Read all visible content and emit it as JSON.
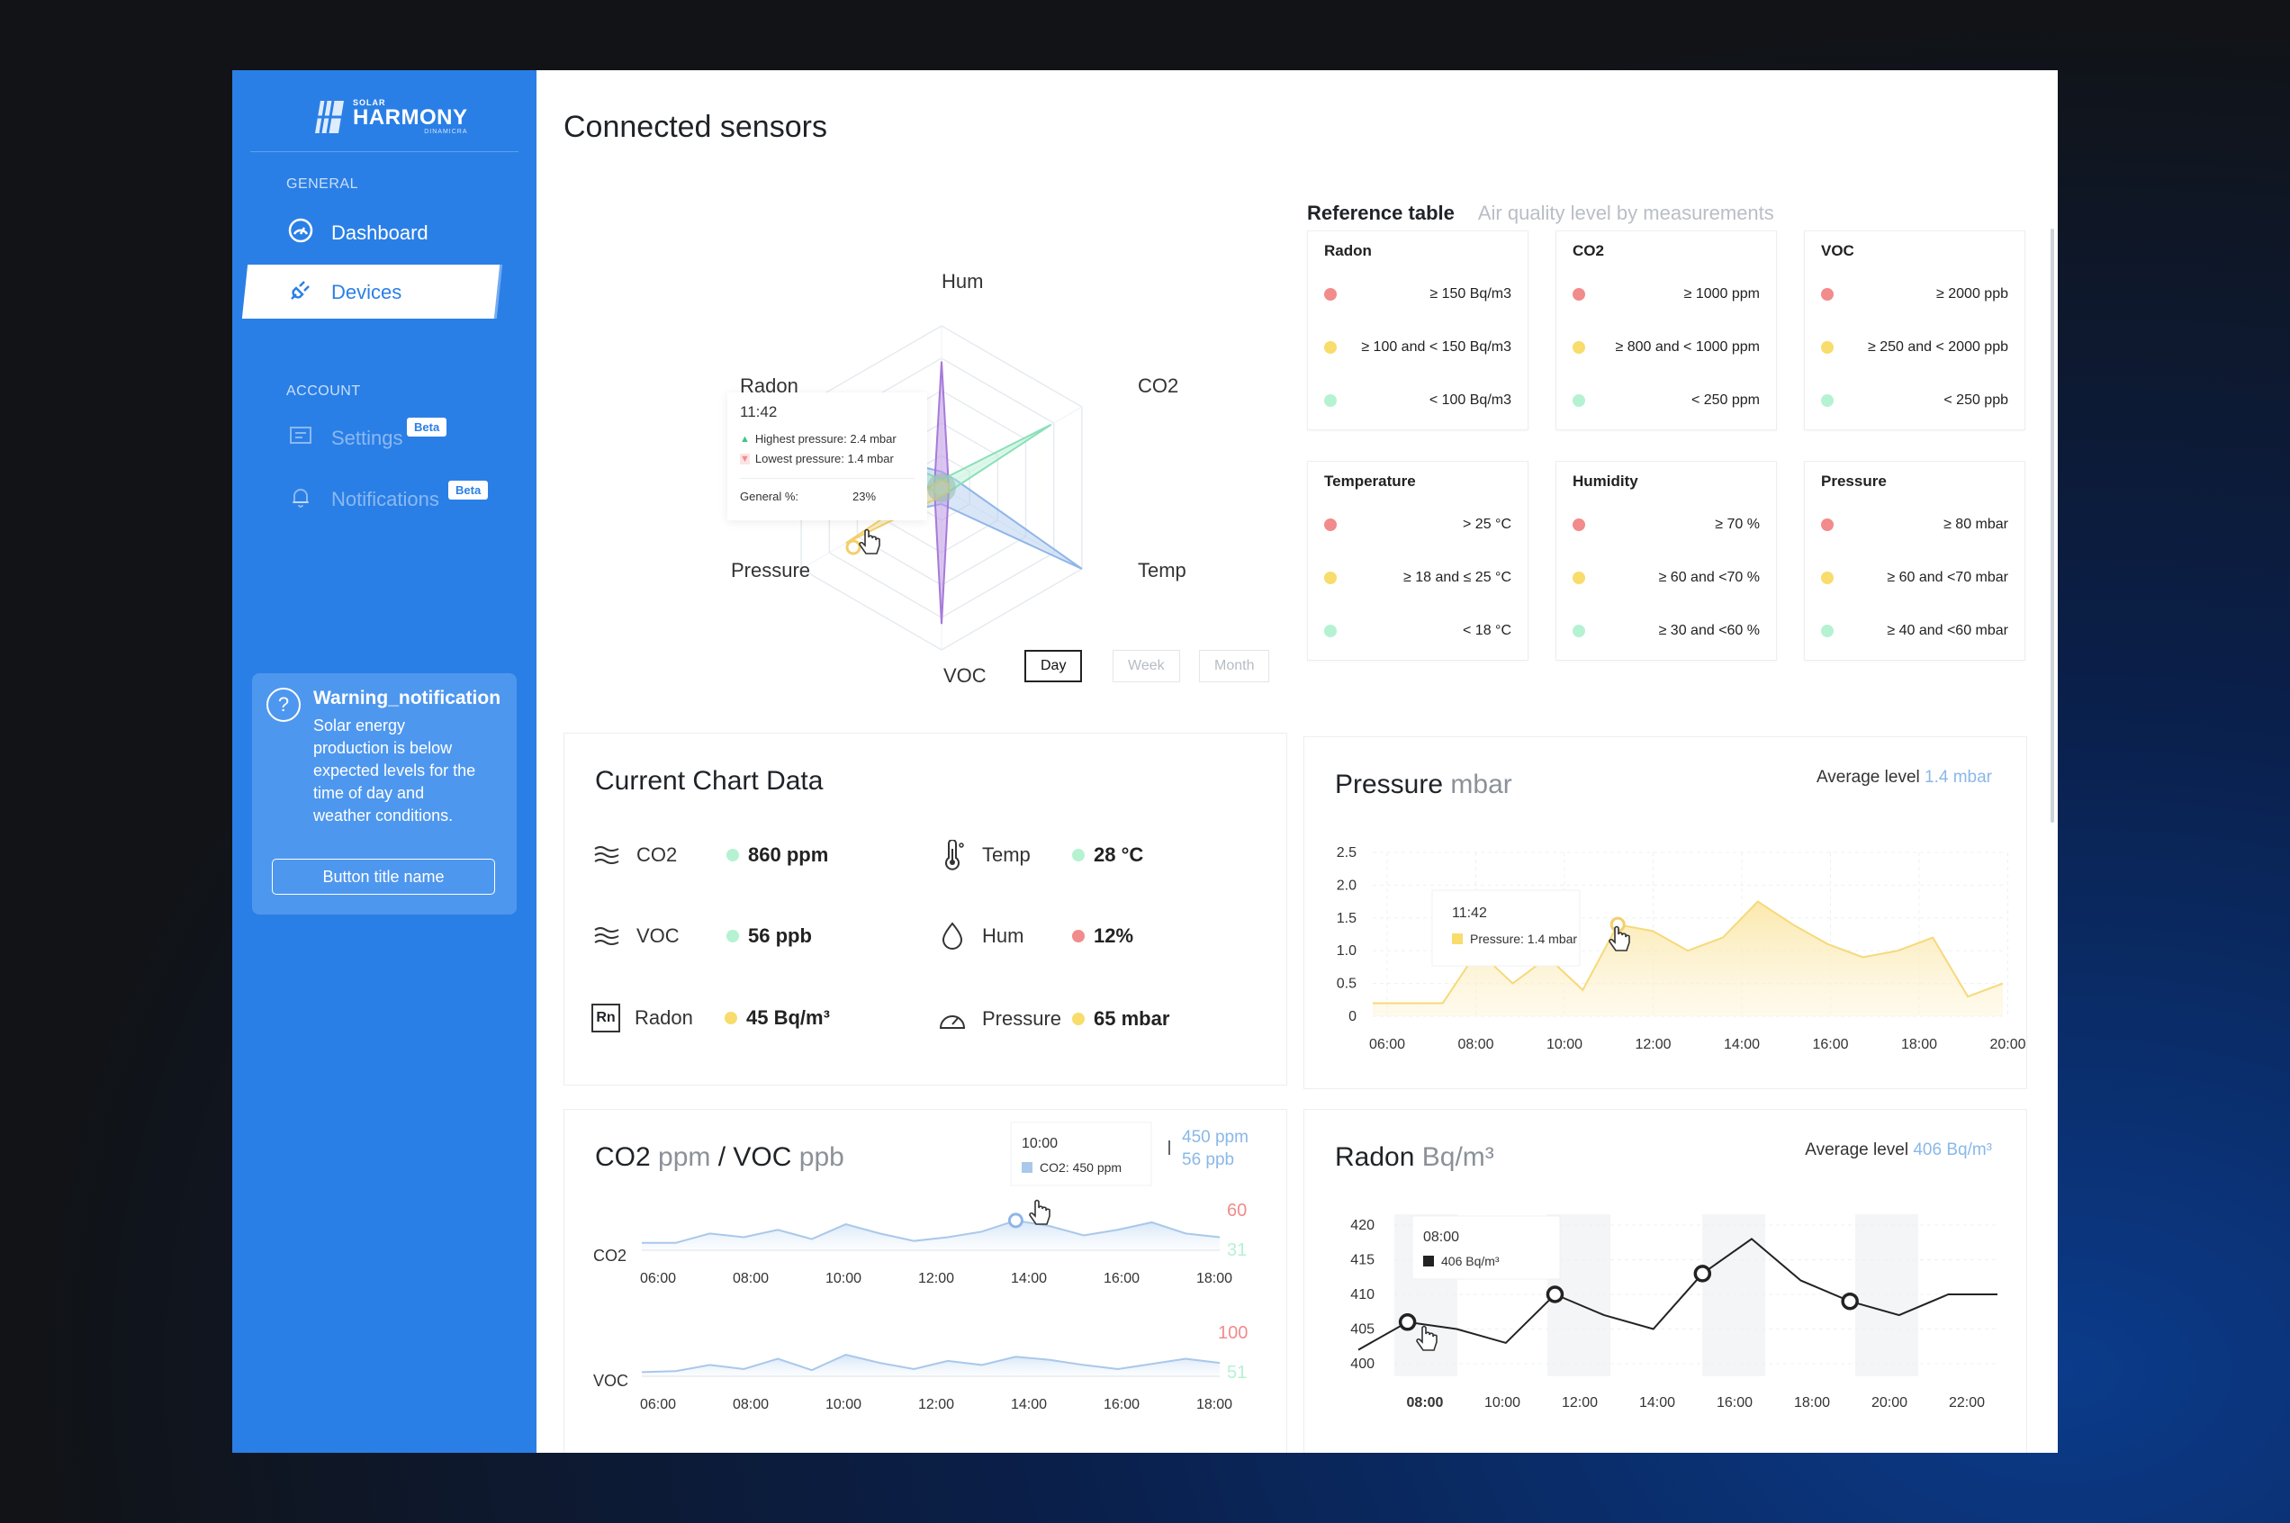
{
  "brand": {
    "small": "SOLAR",
    "name": "HARMONY",
    "sub": "DINAMICRA"
  },
  "sidebar": {
    "general_label": "GENERAL",
    "account_label": "ACCOUNT",
    "items": [
      {
        "label": "Dashboard"
      },
      {
        "label": "Devices"
      },
      {
        "label": "Settings",
        "badge": "Beta"
      },
      {
        "label": "Notifications",
        "badge": "Beta"
      }
    ],
    "warning": {
      "title": "Warning_notification",
      "lines": [
        "Solar energy",
        "production is below",
        "expected levels for the",
        "time of day and",
        "weather conditions."
      ],
      "button": "Button title name"
    }
  },
  "page": {
    "title": "Connected sensors"
  },
  "radar": {
    "labels": {
      "hum": "Hum",
      "co2": "CO2",
      "temp": "Temp",
      "voc": "VOC",
      "pressure": "Pressure",
      "radon": "Radon"
    },
    "tooltip": {
      "time": "11:42",
      "high": "Highest pressure: 2.4 mbar",
      "low": "Lowest pressure: 1.4 mbar",
      "general_label": "General %:",
      "general_value": "23%"
    },
    "ranges": [
      "Day",
      "Week",
      "Month"
    ]
  },
  "reference": {
    "title": "Reference table",
    "subtitle": "Air quality level by measurements",
    "colors": {
      "red": "#f28b8b",
      "yellow": "#f8dc6c",
      "green": "#b5f2d2"
    },
    "cards": [
      {
        "name": "Radon",
        "rows": [
          "≥ 150 Bq/m3",
          "≥ 100 and < 150 Bq/m3",
          "< 100 Bq/m3"
        ]
      },
      {
        "name": "CO2",
        "rows": [
          "≥ 1000 ppm",
          "≥ 800 and < 1000 ppm",
          "< 250 ppm"
        ]
      },
      {
        "name": "VOC",
        "rows": [
          "≥ 2000 ppb",
          "≥ 250 and < 2000 ppb",
          "< 250 ppb"
        ]
      },
      {
        "name": "Temperature",
        "rows": [
          "> 25 °C",
          "≥ 18 and ≤ 25 °C",
          "< 18 °C"
        ]
      },
      {
        "name": "Humidity",
        "rows": [
          "≥ 70 %",
          "≥ 60 and <70 %",
          "≥ 30 and <60 %"
        ]
      },
      {
        "name": "Pressure",
        "rows": [
          "≥ 80 mbar",
          "≥ 60 and <70 mbar",
          "≥ 40 and <60 mbar"
        ]
      }
    ]
  },
  "current": {
    "title": "Current Chart Data",
    "items": [
      {
        "name": "CO2",
        "value": "860 ppm",
        "status": "green"
      },
      {
        "name": "Temp",
        "value": "28 °C",
        "status": "green"
      },
      {
        "name": "VOC",
        "value": "56 ppb",
        "status": "green"
      },
      {
        "name": "Hum",
        "value": "12%",
        "status": "red"
      },
      {
        "name": "Radon",
        "value": "45 Bq/m³",
        "status": "yellow",
        "icon_text": "Rn"
      },
      {
        "name": "Pressure",
        "value": "65 mbar",
        "status": "yellow"
      }
    ]
  },
  "pressure": {
    "title": "Pressure",
    "unit": "mbar",
    "avg_label": "Average level",
    "avg_value": "1.4 mbar",
    "tooltip": {
      "time": "11:42",
      "text": "Pressure: 1.4 mbar"
    }
  },
  "co2voc": {
    "title_a": "CO2",
    "unit_a": "ppm",
    "title_b": "/ VOC",
    "unit_b": "ppb",
    "legend_co2": "450 ppm",
    "legend_voc": "56 ppb",
    "tooltip": {
      "time": "10:00",
      "text": "CO2: 450 ppm"
    },
    "co2_label": "CO2",
    "voc_label": "VOC",
    "co2_max": "60",
    "co2_min": "31",
    "voc_max": "100",
    "voc_min": "51"
  },
  "radon": {
    "title": "Radon",
    "unit": "Bq/m³",
    "avg_label": "Average level",
    "avg_value": "406 Bq/m³",
    "tooltip": {
      "time": "08:00",
      "text": "406 Bq/m³"
    }
  },
  "chart_data": [
    {
      "type": "radar",
      "title": "Connected sensors",
      "axes": [
        "Hum",
        "CO2",
        "Temp",
        "VOC",
        "Pressure",
        "Radon"
      ],
      "series": [
        {
          "name": "blue",
          "values": [
            0.1,
            0.1,
            1.0,
            0.1,
            0.3,
            0.35
          ]
        },
        {
          "name": "purple",
          "values": [
            0.78,
            0.05,
            0.05,
            0.84,
            0.05,
            0.05
          ]
        },
        {
          "name": "green",
          "values": [
            0.05,
            0.78,
            0.05,
            0.05,
            0.05,
            0.4
          ]
        },
        {
          "name": "yellow",
          "values": [
            0.05,
            0.05,
            0.05,
            0.05,
            0.68,
            0.05
          ]
        }
      ]
    },
    {
      "type": "area",
      "title": "Pressure mbar",
      "x": [
        "06:00",
        "07:00",
        "08:00",
        "08:30",
        "09:00",
        "10:00",
        "11:00",
        "11:42",
        "12:00",
        "12:30",
        "13:00",
        "14:00",
        "15:00",
        "16:00",
        "17:00",
        "18:00",
        "19:00",
        "20:00",
        "20:30"
      ],
      "values": [
        0.2,
        0.2,
        0.2,
        1.0,
        0.5,
        0.9,
        0.4,
        1.4,
        1.3,
        1.0,
        1.2,
        1.75,
        1.4,
        1.1,
        0.9,
        1.0,
        1.2,
        0.3,
        0.5
      ],
      "yticks": [
        "0",
        "0.5",
        "1.0",
        "1.5",
        "2.0",
        "2.5"
      ],
      "xticks": [
        "06:00",
        "08:00",
        "10:00",
        "12:00",
        "14:00",
        "16:00",
        "18:00",
        "20:00"
      ],
      "ylim": [
        0,
        2.5
      ]
    },
    {
      "type": "line",
      "title": "CO2 ppm",
      "values": [
        35,
        35,
        40,
        38,
        42,
        37,
        45,
        40,
        36,
        38,
        41,
        47,
        44,
        39,
        42,
        46,
        40,
        38
      ],
      "xticks": [
        "06:00",
        "08:00",
        "10:00",
        "12:00",
        "14:00",
        "16:00",
        "18:00"
      ],
      "ylim": [
        31,
        60
      ]
    },
    {
      "type": "line",
      "title": "VOC ppb",
      "values": [
        55,
        56,
        62,
        58,
        68,
        57,
        72,
        64,
        58,
        66,
        62,
        70,
        67,
        62,
        58,
        63,
        68,
        64
      ],
      "xticks": [
        "06:00",
        "08:00",
        "10:00",
        "12:00",
        "14:00",
        "16:00",
        "18:00"
      ],
      "ylim": [
        51,
        100
      ]
    },
    {
      "type": "line",
      "title": "Radon Bq/m³",
      "x": [
        "07:00",
        "08:00",
        "09:00",
        "10:00",
        "12:00",
        "13:00",
        "14:00",
        "16:00",
        "18:00",
        "19:00",
        "20:00",
        "20:30",
        "22:00",
        "22:30"
      ],
      "values": [
        402,
        406,
        405,
        403,
        410,
        407,
        405,
        413,
        418,
        412,
        409,
        407,
        410,
        410
      ],
      "markers": [
        406,
        410,
        413,
        409
      ],
      "yticks": [
        "400",
        "405",
        "410",
        "415",
        "420"
      ],
      "xticks": [
        "08:00",
        "10:00",
        "12:00",
        "14:00",
        "16:00",
        "18:00",
        "20:00",
        "22:00"
      ],
      "ylim": [
        400,
        420
      ]
    }
  ]
}
